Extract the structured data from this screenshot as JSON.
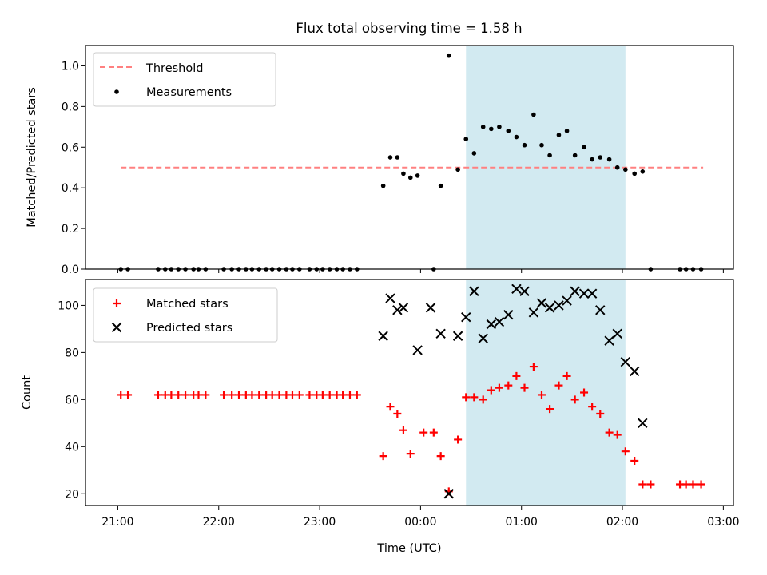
{
  "title": "Flux total observing time = 1.58 h",
  "colors": {
    "threshold": "#ff8080",
    "measurement": "#000000",
    "matched": "#ff0000",
    "predicted": "#000000",
    "span": "#add8e6"
  },
  "chart_data": [
    {
      "type": "scatter",
      "ylabel": "Matched/Predicted stars",
      "ylim": [
        0,
        1.1
      ],
      "yticks": [
        0.0,
        0.2,
        0.4,
        0.6,
        0.8,
        1.0
      ],
      "ytick_labels": [
        "0.0",
        "0.2",
        "0.4",
        "0.6",
        "0.8",
        "1.0"
      ],
      "x_unit": "hours since 00:00 UTC",
      "xlim": [
        -3.32,
        3.1
      ],
      "xticks": [
        -3,
        -2,
        -1,
        0,
        1,
        2,
        3
      ],
      "xtick_labels": [
        "21:00",
        "22:00",
        "23:00",
        "00:00",
        "01:00",
        "02:00",
        "03:00"
      ],
      "legend": {
        "placement": "upper-left",
        "entries": [
          "Threshold",
          "Measurements"
        ]
      },
      "span": {
        "x0": 0.45,
        "x1": 2.03
      },
      "threshold": {
        "name": "Threshold",
        "y": 0.5,
        "x0": -2.97,
        "x1": 2.8
      },
      "measurements": {
        "name": "Measurements",
        "x": [
          -2.97,
          -2.9,
          -2.6,
          -2.53,
          -2.47,
          -2.4,
          -2.33,
          -2.25,
          -2.2,
          -2.13,
          -1.95,
          -1.87,
          -1.8,
          -1.73,
          -1.67,
          -1.6,
          -1.53,
          -1.47,
          -1.4,
          -1.33,
          -1.27,
          -1.2,
          -1.1,
          -1.03,
          -0.97,
          -0.9,
          -0.83,
          -0.77,
          -0.7,
          -0.63,
          -0.37,
          -0.3,
          -0.23,
          -0.17,
          -0.1,
          -0.03,
          0.13,
          0.2,
          0.28,
          0.37,
          0.45,
          0.53,
          0.62,
          0.7,
          0.78,
          0.87,
          0.95,
          1.03,
          1.12,
          1.2,
          1.28,
          1.37,
          1.45,
          1.53,
          1.62,
          1.7,
          1.78,
          1.87,
          1.95,
          2.03,
          2.12,
          2.2,
          2.28,
          2.57,
          2.63,
          2.7,
          2.78
        ],
        "y": [
          0,
          0,
          0,
          0,
          0,
          0,
          0,
          0,
          0,
          0,
          0,
          0,
          0,
          0,
          0,
          0,
          0,
          0,
          0,
          0,
          0,
          0,
          0,
          0,
          0,
          0,
          0,
          0,
          0,
          0,
          0.41,
          0.55,
          0.55,
          0.47,
          0.45,
          0.46,
          0,
          0.41,
          1.05,
          0.49,
          0.64,
          0.57,
          0.7,
          0.69,
          0.7,
          0.68,
          0.65,
          0.61,
          0.76,
          0.61,
          0.56,
          0.66,
          0.68,
          0.56,
          0.6,
          0.54,
          0.55,
          0.54,
          0.5,
          0.49,
          0.47,
          0.48,
          0,
          0,
          0,
          0,
          0
        ]
      }
    },
    {
      "type": "scatter",
      "xlabel": "Time (UTC)",
      "ylabel": "Count",
      "ylim": [
        15,
        111
      ],
      "yticks": [
        20,
        40,
        60,
        80,
        100
      ],
      "ytick_labels": [
        "20",
        "40",
        "60",
        "80",
        "100"
      ],
      "x_unit": "hours since 00:00 UTC",
      "xlim": [
        -3.32,
        3.1
      ],
      "xticks": [
        -3,
        -2,
        -1,
        0,
        1,
        2,
        3
      ],
      "xtick_labels": [
        "21:00",
        "22:00",
        "23:00",
        "00:00",
        "01:00",
        "02:00",
        "03:00"
      ],
      "legend": {
        "placement": "upper-left",
        "entries": [
          "Matched stars",
          "Predicted stars"
        ]
      },
      "span": {
        "x0": 0.45,
        "x1": 2.03
      },
      "series": [
        {
          "name": "Matched stars",
          "marker": "plus",
          "x": [
            -2.97,
            -2.9,
            -2.6,
            -2.53,
            -2.47,
            -2.4,
            -2.33,
            -2.25,
            -2.2,
            -2.13,
            -1.95,
            -1.87,
            -1.8,
            -1.73,
            -1.67,
            -1.6,
            -1.53,
            -1.47,
            -1.4,
            -1.33,
            -1.27,
            -1.2,
            -1.1,
            -1.03,
            -0.97,
            -0.9,
            -0.83,
            -0.77,
            -0.7,
            -0.63,
            -0.37,
            -0.3,
            -0.23,
            -0.17,
            -0.1,
            0.03,
            0.13,
            0.2,
            0.28,
            0.37,
            0.45,
            0.53,
            0.62,
            0.7,
            0.78,
            0.87,
            0.95,
            1.03,
            1.12,
            1.2,
            1.28,
            1.37,
            1.45,
            1.53,
            1.62,
            1.7,
            1.78,
            1.87,
            1.95,
            2.03,
            2.12,
            2.2,
            2.28,
            2.57,
            2.63,
            2.7,
            2.78
          ],
          "y": [
            62,
            62,
            62,
            62,
            62,
            62,
            62,
            62,
            62,
            62,
            62,
            62,
            62,
            62,
            62,
            62,
            62,
            62,
            62,
            62,
            62,
            62,
            62,
            62,
            62,
            62,
            62,
            62,
            62,
            62,
            36,
            57,
            54,
            47,
            37,
            46,
            46,
            36,
            21,
            43,
            61,
            61,
            60,
            64,
            65,
            66,
            70,
            65,
            74,
            62,
            56,
            66,
            70,
            60,
            63,
            57,
            54,
            46,
            45,
            38,
            34,
            24,
            24,
            24,
            24,
            24,
            24
          ]
        },
        {
          "name": "Predicted stars",
          "marker": "x",
          "x": [
            -0.37,
            -0.3,
            -0.23,
            -0.17,
            -0.03,
            0.1,
            0.2,
            0.28,
            0.37,
            0.45,
            0.53,
            0.62,
            0.7,
            0.78,
            0.87,
            0.95,
            1.03,
            1.12,
            1.2,
            1.28,
            1.37,
            1.45,
            1.53,
            1.62,
            1.7,
            1.78,
            1.87,
            1.95,
            2.03,
            2.12,
            2.2
          ],
          "y": [
            87,
            103,
            98,
            99,
            81,
            99,
            88,
            20,
            87,
            95,
            106,
            86,
            92,
            93,
            96,
            107,
            106,
            97,
            101,
            99,
            100,
            102,
            106,
            105,
            105,
            98,
            85,
            88,
            76,
            72,
            50
          ]
        }
      ]
    }
  ]
}
